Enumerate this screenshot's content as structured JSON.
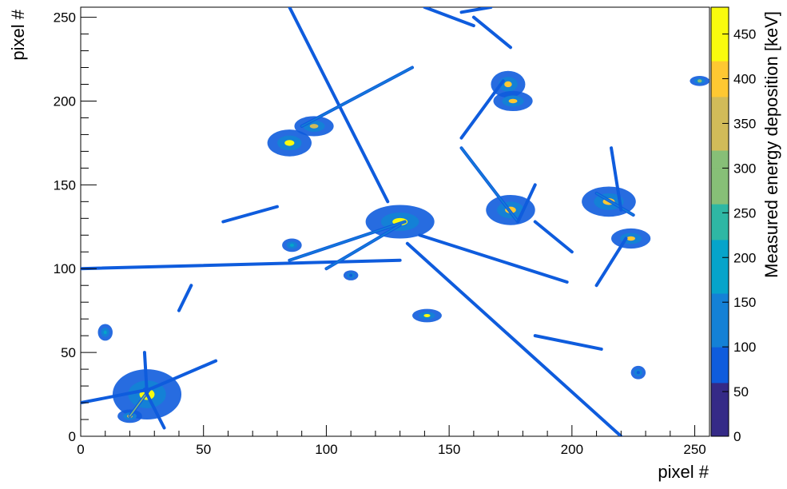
{
  "chart_data": {
    "type": "heatmap",
    "title": "",
    "xlabel": "pixel #",
    "ylabel": "pixel #",
    "zlabel": "Measured energy deposition [keV]",
    "xlim": [
      0,
      256
    ],
    "ylim": [
      0,
      256
    ],
    "zlim": [
      0,
      480
    ],
    "x_ticks": [
      0,
      50,
      100,
      150,
      200,
      250
    ],
    "y_ticks": [
      0,
      50,
      100,
      150,
      200,
      250
    ],
    "z_ticks": [
      0,
      50,
      100,
      150,
      200,
      250,
      300,
      350,
      400,
      450
    ],
    "colormap": [
      "#352a87",
      "#0f5cdd",
      "#1481d6",
      "#06a4ca",
      "#2eb7a4",
      "#87bf77",
      "#d1bb59",
      "#fec832",
      "#f9fb0e"
    ],
    "grid": false,
    "tracks": [
      {
        "x1": 85,
        "y1": 256,
        "x2": 125,
        "y2": 140,
        "energy": 60
      },
      {
        "x1": 140,
        "y1": 256,
        "x2": 160,
        "y2": 245,
        "energy": 60
      },
      {
        "x1": 155,
        "y1": 253,
        "x2": 167,
        "y2": 256,
        "energy": 60
      },
      {
        "x1": 160,
        "y1": 250,
        "x2": 175,
        "y2": 232,
        "energy": 60
      },
      {
        "x1": 133,
        "y1": 115,
        "x2": 220,
        "y2": 0,
        "energy": 60
      },
      {
        "x1": 138,
        "y1": 120,
        "x2": 198,
        "y2": 92,
        "energy": 60
      },
      {
        "x1": 0,
        "y1": 100,
        "x2": 130,
        "y2": 105,
        "energy": 90
      },
      {
        "x1": 85,
        "y1": 105,
        "x2": 132,
        "y2": 128,
        "energy": 110
      },
      {
        "x1": 100,
        "y1": 100,
        "x2": 130,
        "y2": 126,
        "energy": 130
      },
      {
        "x1": 90,
        "y1": 185,
        "x2": 135,
        "y2": 220,
        "energy": 110
      },
      {
        "x1": 58,
        "y1": 128,
        "x2": 80,
        "y2": 137,
        "energy": 60
      },
      {
        "x1": 155,
        "y1": 178,
        "x2": 172,
        "y2": 212,
        "energy": 90
      },
      {
        "x1": 155,
        "y1": 172,
        "x2": 178,
        "y2": 128,
        "energy": 120
      },
      {
        "x1": 178,
        "y1": 128,
        "x2": 185,
        "y2": 150,
        "energy": 90
      },
      {
        "x1": 185,
        "y1": 128,
        "x2": 200,
        "y2": 110,
        "energy": 60
      },
      {
        "x1": 210,
        "y1": 145,
        "x2": 225,
        "y2": 132,
        "energy": 140
      },
      {
        "x1": 216,
        "y1": 172,
        "x2": 220,
        "y2": 135,
        "energy": 100
      },
      {
        "x1": 210,
        "y1": 90,
        "x2": 222,
        "y2": 118,
        "energy": 60
      },
      {
        "x1": 185,
        "y1": 60,
        "x2": 212,
        "y2": 52,
        "energy": 60
      },
      {
        "x1": 20,
        "y1": 12,
        "x2": 28,
        "y2": 28,
        "energy": 300
      },
      {
        "x1": 28,
        "y1": 28,
        "x2": 55,
        "y2": 45,
        "energy": 90
      },
      {
        "x1": 26,
        "y1": 28,
        "x2": 34,
        "y2": 5,
        "energy": 100
      },
      {
        "x1": 0,
        "y1": 20,
        "x2": 28,
        "y2": 28,
        "energy": 80
      },
      {
        "x1": 26,
        "y1": 50,
        "x2": 27,
        "y2": 25,
        "energy": 90
      },
      {
        "x1": 40,
        "y1": 75,
        "x2": 45,
        "y2": 90,
        "energy": 60
      }
    ],
    "blobs": [
      {
        "x": 27,
        "y": 25,
        "rx": 14,
        "ry": 15,
        "peak": 460
      },
      {
        "x": 20,
        "y": 12,
        "rx": 5,
        "ry": 4,
        "peak": 420
      },
      {
        "x": 10,
        "y": 62,
        "rx": 3,
        "ry": 5,
        "peak": 200
      },
      {
        "x": 85,
        "y": 175,
        "rx": 9,
        "ry": 8,
        "peak": 430
      },
      {
        "x": 95,
        "y": 185,
        "rx": 8,
        "ry": 6,
        "peak": 330
      },
      {
        "x": 130,
        "y": 128,
        "rx": 14,
        "ry": 10,
        "peak": 470
      },
      {
        "x": 86,
        "y": 114,
        "rx": 4,
        "ry": 4,
        "peak": 200
      },
      {
        "x": 141,
        "y": 72,
        "rx": 6,
        "ry": 4,
        "peak": 430
      },
      {
        "x": 174,
        "y": 210,
        "rx": 7,
        "ry": 8,
        "peak": 420
      },
      {
        "x": 176,
        "y": 200,
        "rx": 8,
        "ry": 6,
        "peak": 400
      },
      {
        "x": 175,
        "y": 135,
        "rx": 10,
        "ry": 9,
        "peak": 380
      },
      {
        "x": 215,
        "y": 140,
        "rx": 11,
        "ry": 9,
        "peak": 380
      },
      {
        "x": 224,
        "y": 118,
        "rx": 8,
        "ry": 6,
        "peak": 420
      },
      {
        "x": 252,
        "y": 212,
        "rx": 4,
        "ry": 3,
        "peak": 300
      },
      {
        "x": 110,
        "y": 96,
        "rx": 3,
        "ry": 3,
        "peak": 80
      },
      {
        "x": 227,
        "y": 38,
        "rx": 3,
        "ry": 4,
        "peak": 80
      }
    ]
  }
}
